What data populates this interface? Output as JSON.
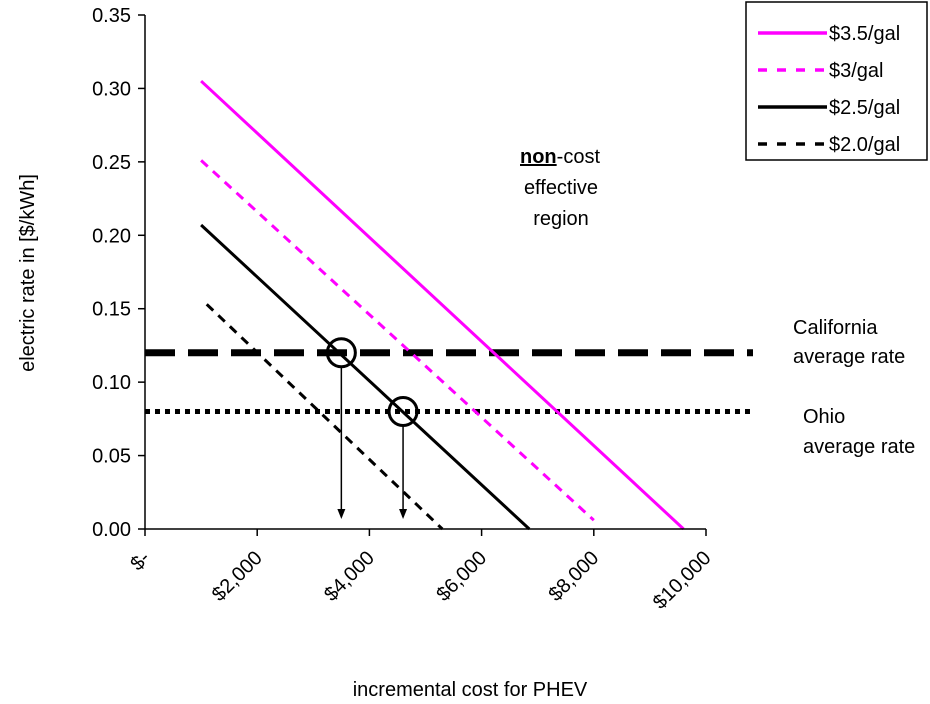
{
  "chart_data": {
    "type": "line",
    "xlabel": "incremental cost for PHEV",
    "ylabel": "electric rate in [$/kWh]",
    "xlim": [
      0,
      10000
    ],
    "ylim": [
      0,
      0.35
    ],
    "x_ticks": [
      0,
      2000,
      4000,
      6000,
      8000,
      10000
    ],
    "x_tick_labels": [
      "$-",
      "$2,000",
      "$4,000",
      "$6,000",
      "$8,000",
      "$10,000"
    ],
    "y_ticks": [
      0,
      0.05,
      0.1,
      0.15,
      0.2,
      0.25,
      0.3,
      0.35
    ],
    "y_tick_labels": [
      "0.00",
      "0.05",
      "0.10",
      "0.15",
      "0.20",
      "0.25",
      "0.30",
      "0.35"
    ],
    "grid": false,
    "legend_position": "top-right",
    "series": [
      {
        "name": "$3.5/gal",
        "color": "#ff00ff",
        "dash": "solid",
        "x": [
          1000,
          9600
        ],
        "values": [
          0.305,
          0.0
        ]
      },
      {
        "name": "$3/gal",
        "color": "#ff00ff",
        "dash": "dashed",
        "x": [
          1000,
          8000
        ],
        "values": [
          0.251,
          0.006
        ]
      },
      {
        "name": "$2.5/gal",
        "color": "#000000",
        "dash": "solid",
        "x": [
          1000,
          6850
        ],
        "values": [
          0.207,
          0.0
        ]
      },
      {
        "name": "$2.0/gal",
        "color": "#000000",
        "dash": "dashed",
        "x": [
          1100,
          5300
        ],
        "values": [
          0.153,
          0.0
        ]
      }
    ],
    "reference_lines": [
      {
        "y": 0.12,
        "style": "long-dash",
        "label_lines": [
          "California",
          "average rate"
        ]
      },
      {
        "y": 0.08,
        "style": "dotted",
        "label_lines": [
          "Ohio",
          "average rate"
        ]
      }
    ],
    "intersections": [
      {
        "x": 3500,
        "y": 0.12
      },
      {
        "x": 4600,
        "y": 0.08
      }
    ],
    "region_label": {
      "bold": "non",
      "rest": "-cost",
      "line2": "effective",
      "line3": "region"
    }
  }
}
